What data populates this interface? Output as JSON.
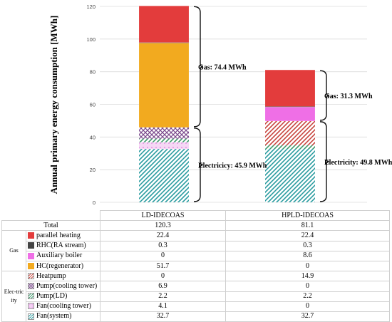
{
  "chart_data": {
    "type": "bar",
    "stacked": true,
    "ylabel": "Annual primary energy consumption [MWh]",
    "ylim": [
      0,
      120
    ],
    "yticks": [
      0,
      20,
      40,
      60,
      80,
      100,
      120
    ],
    "grid": true,
    "categories": [
      "LD-IDECOAS",
      "HPLD-IDECOAS"
    ],
    "totals_label": "Total",
    "totals": [
      "120.3",
      "81.1"
    ],
    "series": [
      {
        "name": "Fan(system)",
        "group": "Electricity",
        "values": [
          32.7,
          32.7
        ],
        "color": "#2a9ca0",
        "pattern": "diag"
      },
      {
        "name": "Fan(cooling tower)",
        "group": "Electricity",
        "values": [
          4.1,
          0
        ],
        "color": "#e38ee3",
        "pattern": "dots"
      },
      {
        "name": "Pump(LD)",
        "group": "Electricity",
        "values": [
          2.2,
          2.2
        ],
        "color": "#3a9a6a",
        "pattern": "diag"
      },
      {
        "name": "Pump(cooling tower)",
        "group": "Electricity",
        "values": [
          6.9,
          0
        ],
        "color": "#7b4a8c",
        "pattern": "cross"
      },
      {
        "name": "Heatpump",
        "group": "Electricity",
        "values": [
          0,
          14.9
        ],
        "color": "#c8453e",
        "pattern": "diag"
      },
      {
        "name": "HC(regenerator)",
        "group": "Gas",
        "values": [
          51.7,
          0
        ],
        "color": "#f2aa1f",
        "pattern": "solid"
      },
      {
        "name": "Auxiliary boiler",
        "group": "Gas",
        "values": [
          0,
          8.6
        ],
        "color": "#ef6fe6",
        "pattern": "solid"
      },
      {
        "name": "RHC(RA stream)",
        "group": "Gas",
        "values": [
          0.3,
          0.3
        ],
        "color": "#444444",
        "pattern": "solid"
      },
      {
        "name": "parallel heating",
        "group": "Gas",
        "values": [
          22.4,
          22.4
        ],
        "color": "#e33c3c",
        "pattern": "solid"
      }
    ],
    "annotations": [
      {
        "bar": 0,
        "label": "Gas: 74.4 MWh",
        "from": 45.9,
        "to": 120.3
      },
      {
        "bar": 0,
        "label": "Electricicy: 45.9 MWh",
        "from": 0,
        "to": 45.9
      },
      {
        "bar": 1,
        "label": "Gas: 31.3 MWh",
        "from": 49.8,
        "to": 81.1
      },
      {
        "bar": 1,
        "label": "Electricity: 49.8 MWh",
        "from": 0,
        "to": 49.8
      }
    ]
  },
  "table": {
    "group_gas": "Gas",
    "group_elec": "Elec-tricity",
    "rows": [
      {
        "label": "parallel heating",
        "v1": "22.4",
        "v2": "22.4",
        "color": "#e33c3c",
        "pattern": "solid"
      },
      {
        "label": "RHC(RA stream)",
        "v1": "0.3",
        "v2": "0.3",
        "color": "#444444",
        "pattern": "solid"
      },
      {
        "label": "Auxiliary boiler",
        "v1": "0",
        "v2": "8.6",
        "color": "#ef6fe6",
        "pattern": "solid"
      },
      {
        "label": "HC(regenerator)",
        "v1": "51.7",
        "v2": "0",
        "color": "#f2aa1f",
        "pattern": "solid"
      },
      {
        "label": "Heatpump",
        "v1": "0",
        "v2": "14.9",
        "color": "#c8453e",
        "pattern": "diag"
      },
      {
        "label": "Pump(cooling tower)",
        "v1": "6.9",
        "v2": "0",
        "color": "#7b4a8c",
        "pattern": "cross"
      },
      {
        "label": "Pump(LD)",
        "v1": "2.2",
        "v2": "2.2",
        "color": "#3a9a6a",
        "pattern": "diag"
      },
      {
        "label": "Fan(cooling tower)",
        "v1": "4.1",
        "v2": "0",
        "color": "#e38ee3",
        "pattern": "dots"
      },
      {
        "label": "Fan(system)",
        "v1": "32.7",
        "v2": "32.7",
        "color": "#2a9ca0",
        "pattern": "diag"
      }
    ]
  }
}
